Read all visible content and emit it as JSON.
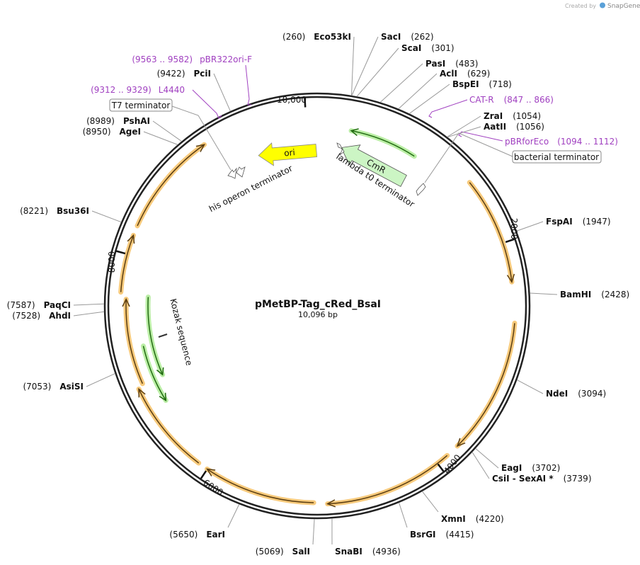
{
  "header": {
    "created_by": "Created by",
    "brand": "SnapGene"
  },
  "map": {
    "name": "pMetBP-Tag_cRed_BsaI",
    "length": {
      "value": 10096,
      "label": "10,096 bp"
    },
    "ticks": [
      {
        "value": 10000,
        "label": "10,000"
      },
      2000,
      4000,
      6000,
      8000
    ],
    "sites": [
      {
        "name": "Eco53kI",
        "position": {
          "value": 260,
          "label": "(260)"
        }
      },
      {
        "name": "SacI",
        "position": {
          "value": 262,
          "label": "(262)"
        }
      },
      {
        "name": "ScaI",
        "position": {
          "value": 301,
          "label": "(301)"
        }
      },
      {
        "name": "PasI",
        "position": {
          "value": 483,
          "label": "(483)"
        }
      },
      {
        "name": "AclI",
        "position": {
          "value": 629,
          "label": "(629)"
        }
      },
      {
        "name": "BspEI",
        "position": {
          "value": 718,
          "label": "(718)"
        }
      },
      {
        "name": "ZraI",
        "position": {
          "value": 1054,
          "label": "(1054)"
        }
      },
      {
        "name": "AatII",
        "position": {
          "value": 1056,
          "label": "(1056)"
        }
      },
      {
        "name": "FspAI",
        "position": {
          "value": 1947,
          "label": "(1947)"
        }
      },
      {
        "name": "BamHI",
        "position": {
          "value": 2428,
          "label": "(2428)"
        }
      },
      {
        "name": "NdeI",
        "position": {
          "value": 3094,
          "label": "(3094)"
        }
      },
      {
        "name": "EagI",
        "position": {
          "value": 3702,
          "label": "(3702)"
        }
      },
      {
        "name": "CsiI  -  SexAI *",
        "position": {
          "value": 3739,
          "label": "(3739)"
        }
      },
      {
        "name": "XmnI",
        "position": {
          "value": 4220,
          "label": "(4220)"
        }
      },
      {
        "name": "BsrGI",
        "position": {
          "value": 4415,
          "label": "(4415)"
        }
      },
      {
        "name": "SnaBI",
        "position": {
          "value": 4936,
          "label": "(4936)"
        }
      },
      {
        "name": "SalI",
        "position": {
          "value": 5069,
          "label": "(5069)"
        }
      },
      {
        "name": "EarI",
        "position": {
          "value": 5650,
          "label": "(5650)"
        }
      },
      {
        "name": "AsiSI",
        "position": {
          "value": 7053,
          "label": "(7053)"
        }
      },
      {
        "name": "AhdI",
        "position": {
          "value": 7528,
          "label": "(7528)"
        }
      },
      {
        "name": "PaqCI",
        "position": {
          "value": 7587,
          "label": "(7587)"
        }
      },
      {
        "name": "Bsu36I",
        "position": {
          "value": 8221,
          "label": "(8221)"
        }
      },
      {
        "name": "AgeI",
        "position": {
          "value": 8950,
          "label": "(8950)"
        }
      },
      {
        "name": "PshAI",
        "position": {
          "value": 8989,
          "label": "(8989)"
        }
      },
      {
        "name": "PciI",
        "position": {
          "value": 9422,
          "label": "(9422)"
        }
      }
    ],
    "primers": [
      {
        "name": "pBR322ori-F",
        "range": "(9563 .. 9582)"
      },
      {
        "name": "L4440",
        "range": "(9312 .. 9329)"
      },
      {
        "name": "CAT-R",
        "range": "(847 .. 866)"
      },
      {
        "name": "pBRforEco",
        "range": "(1094 .. 1112)"
      }
    ],
    "features": [
      {
        "name": "T7 terminator"
      },
      {
        "name": "bacterial terminator"
      },
      {
        "name": "ori"
      },
      {
        "name": "CmR"
      },
      {
        "name": "lambda t0 terminator"
      },
      {
        "name": "his operon terminator"
      },
      {
        "name": "Kozak sequence"
      }
    ]
  }
}
